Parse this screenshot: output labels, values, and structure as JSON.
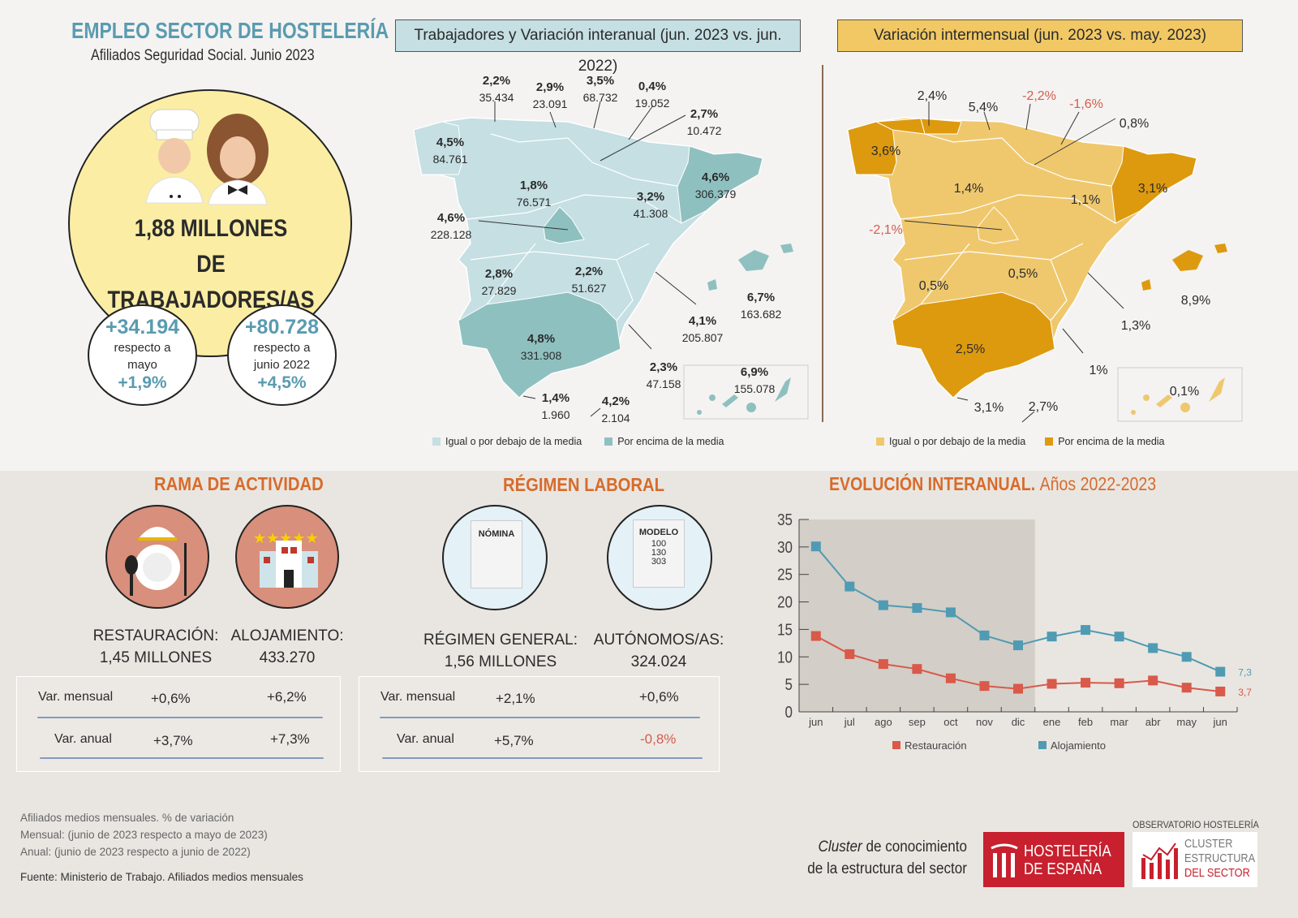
{
  "header": {
    "title": "EMPLEO SECTOR DE HOSTELERÍA",
    "subtitle": "Afiliados Seguridad Social. Junio 2023"
  },
  "summary": {
    "total": "1,88 MILLONES",
    "total_line2": "DE TRABAJADORES/AS",
    "monthly": {
      "value": "+34.194",
      "text1": "respecto a",
      "text2": "mayo",
      "pct": "+1,9%"
    },
    "annual": {
      "value": "+80.728",
      "text1": "respecto a",
      "text2": "junio 2022",
      "pct": "+4,5%"
    }
  },
  "map_interanual": {
    "title": "Trabajadores y Variación interanual (jun. 2023 vs. jun. 2022)",
    "colors": {
      "below": "#c5dfe3",
      "above": "#8fc0c0"
    },
    "regions": [
      {
        "name": "Galicia",
        "pct": "4,5%",
        "value": "84.761"
      },
      {
        "name": "Asturias",
        "pct": "2,2%",
        "value": "35.434"
      },
      {
        "name": "Cantabria",
        "pct": "2,9%",
        "value": "23.091"
      },
      {
        "name": "País Vasco",
        "pct": "3,5%",
        "value": "68.732"
      },
      {
        "name": "Navarra",
        "pct": "0,4%",
        "value": "19.052"
      },
      {
        "name": "La Rioja",
        "pct": "2,7%",
        "value": "10.472"
      },
      {
        "name": "Castilla y León",
        "pct": "1,8%",
        "value": "76.571"
      },
      {
        "name": "Aragón",
        "pct": "3,2%",
        "value": "41.308"
      },
      {
        "name": "Cataluña",
        "pct": "4,6%",
        "value": "306.379"
      },
      {
        "name": "Madrid",
        "pct": "4,6%",
        "value": "228.128"
      },
      {
        "name": "Extremadura",
        "pct": "2,8%",
        "value": "27.829"
      },
      {
        "name": "Castilla-La Mancha",
        "pct": "2,2%",
        "value": "51.627"
      },
      {
        "name": "C. Valenciana",
        "pct": "4,1%",
        "value": "205.807"
      },
      {
        "name": "Baleares",
        "pct": "6,7%",
        "value": "163.682"
      },
      {
        "name": "Andalucía",
        "pct": "4,8%",
        "value": "331.908"
      },
      {
        "name": "Murcia",
        "pct": "2,3%",
        "value": "47.158"
      },
      {
        "name": "Ceuta",
        "pct": "1,4%",
        "value": "1.960"
      },
      {
        "name": "Melilla",
        "pct": "4,2%",
        "value": "2.104"
      },
      {
        "name": "Canarias",
        "pct": "6,9%",
        "value": "155.078"
      }
    ],
    "legend": {
      "below": "Igual o por debajo de la media",
      "above": "Por encima de la media"
    }
  },
  "map_intermensual": {
    "title": "Variación intermensual (jun. 2023 vs. may. 2023)",
    "colors": {
      "below": "#efc86e",
      "above": "#dd9a0f"
    },
    "regions": [
      {
        "name": "Galicia",
        "pct": "3,6%"
      },
      {
        "name": "Asturias",
        "pct": "2,4%"
      },
      {
        "name": "Cantabria",
        "pct": "5,4%"
      },
      {
        "name": "País Vasco",
        "pct": "-2,2%"
      },
      {
        "name": "Navarra",
        "pct": "-1,6%"
      },
      {
        "name": "La Rioja",
        "pct": "0,8%"
      },
      {
        "name": "Castilla y León",
        "pct": "1,4%"
      },
      {
        "name": "Aragón",
        "pct": "1,1%"
      },
      {
        "name": "Cataluña",
        "pct": "3,1%"
      },
      {
        "name": "Madrid",
        "pct": "-2,1%"
      },
      {
        "name": "Extremadura",
        "pct": "0,5%"
      },
      {
        "name": "Castilla-La Mancha",
        "pct": "0,5%"
      },
      {
        "name": "C. Valenciana",
        "pct": "1,3%"
      },
      {
        "name": "Baleares",
        "pct": "8,9%"
      },
      {
        "name": "Andalucía",
        "pct": "2,5%"
      },
      {
        "name": "Murcia",
        "pct": "1%"
      },
      {
        "name": "Ceuta",
        "pct": "3,1%"
      },
      {
        "name": "Melilla",
        "pct": "2,7%"
      },
      {
        "name": "Canarias",
        "pct": "0,1%"
      }
    ],
    "legend": {
      "below": "Igual o por debajo de la media",
      "above": "Por encima de la media"
    }
  },
  "rama": {
    "title": "RAMA DE ACTIVIDAD",
    "restauracion": {
      "label": "RESTAURACIÓN:",
      "value": "1,45 MILLONES"
    },
    "alojamiento": {
      "label": "ALOJAMIENTO:",
      "value": "433.270"
    },
    "rows": [
      {
        "label": "Var. mensual",
        "a": "+0,6%",
        "b": "+6,2%"
      },
      {
        "label": "Var. anual",
        "a": "+3,7%",
        "b": "+7,3%"
      }
    ]
  },
  "regimen": {
    "title": "RÉGIMEN LABORAL",
    "doc1": "NÓMINA",
    "doc2": "MODELO",
    "doc2_lines": [
      "100",
      "130",
      "303"
    ],
    "general": {
      "label": "RÉGIMEN GENERAL:",
      "value": "1,56 MILLONES"
    },
    "autonomos": {
      "label": "AUTÓNOMOS/AS:",
      "value": "324.024"
    },
    "rows": [
      {
        "label": "Var. mensual",
        "a": "+2,1%",
        "b": "+0,6%"
      },
      {
        "label": "Var. anual",
        "a": "+5,7%",
        "b": "-0,8%"
      }
    ]
  },
  "evolucion": {
    "title": "EVOLUCIÓN INTERANUAL.",
    "title_suffix": "Años 2022-2023"
  },
  "chart_data": {
    "type": "line",
    "categories": [
      "jun",
      "jul",
      "ago",
      "sep",
      "oct",
      "nov",
      "dic",
      "ene",
      "feb",
      "mar",
      "abr",
      "may",
      "jun"
    ],
    "ylim": [
      0,
      35
    ],
    "yticks": [
      0,
      5,
      10,
      15,
      20,
      25,
      30,
      35
    ],
    "shaded_range": [
      "jun",
      "dic"
    ],
    "legend_position": "bottom",
    "series": [
      {
        "name": "Restauración",
        "color": "#d9594a",
        "values": [
          13.8,
          10.5,
          8.7,
          7.8,
          6.1,
          4.7,
          4.2,
          5.1,
          5.3,
          5.2,
          5.7,
          4.4,
          3.7
        ],
        "end_label": "3,7"
      },
      {
        "name": "Alojamiento",
        "color": "#4f9bb3",
        "values": [
          30.1,
          22.8,
          19.4,
          18.9,
          18.1,
          13.9,
          12.1,
          13.7,
          14.9,
          13.7,
          11.6,
          10.0,
          7.3
        ],
        "end_label": "7,3"
      }
    ]
  },
  "footer": {
    "notes": [
      "Afiliados medios mensuales. % de variación",
      "Mensual: (junio de 2023 respecto a mayo de 2023)",
      "Anual: (junio de 2023 respecto a junio de 2022)"
    ],
    "source": "Fuente: Ministerio de Trabajo. Afiliados medios mensuales",
    "cluster_em": "Cluster",
    "cluster_rest": " de conocimiento",
    "cluster_line2": "de la estructura del sector",
    "logo1": [
      "HOSTELERÍA",
      "DE ESPAÑA"
    ],
    "observatorio": "OBSERVATORIO HOSTELERÍA",
    "logo2": [
      "CLUSTER",
      "ESTRUCTURA",
      "DEL SECTOR"
    ]
  }
}
